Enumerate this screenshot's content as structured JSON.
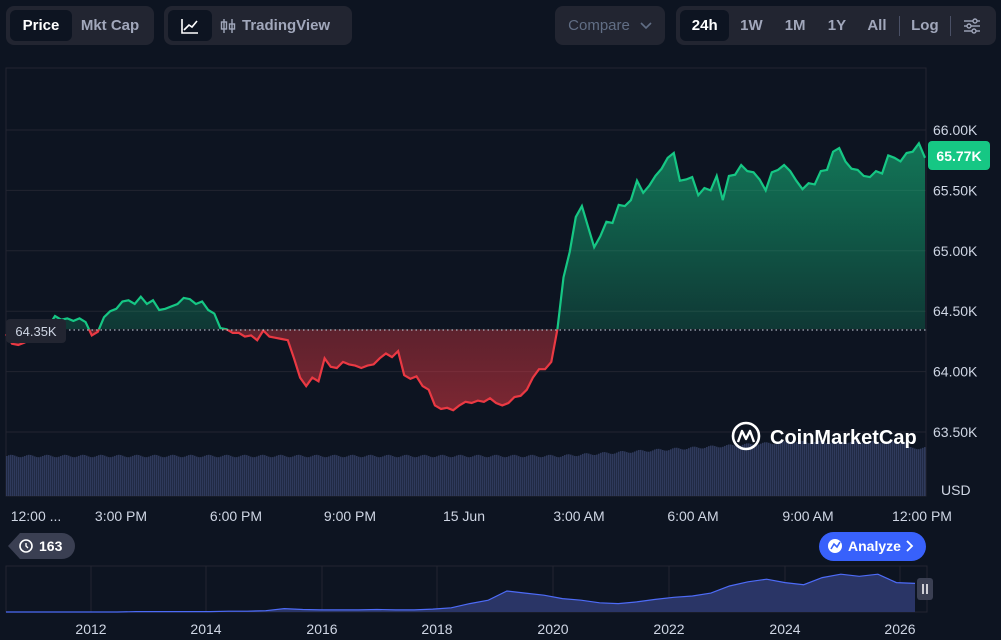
{
  "toolbar": {
    "price_tab": "Price",
    "mktcap_tab": "Mkt Cap",
    "line_icon": "line-chart-icon",
    "candle_icon": "candlestick-icon",
    "tradingview_label": "TradingView",
    "compare_label": "Compare",
    "compare_icon": "chevron-down-icon",
    "ranges": [
      "24h",
      "1W",
      "1M",
      "1Y",
      "All"
    ],
    "active_range": "24h",
    "log_label": "Log",
    "settings_icon": "sliders-icon"
  },
  "main_chart": {
    "y_ticks": [
      "66.00K",
      "65.50K",
      "65.00K",
      "64.50K",
      "64.00K",
      "63.50K"
    ],
    "currency_label": "USD",
    "current_price_label": "65.77K",
    "open_price_label": "64.35K",
    "x_ticks": [
      "12:00 ...",
      "3:00 PM",
      "6:00 PM",
      "9:00 PM",
      "15 Jun",
      "3:00 AM",
      "6:00 AM",
      "9:00 AM",
      "12:00 PM"
    ],
    "watermark": "CoinMarketCap",
    "colors": {
      "up": "#16c784",
      "down": "#ea3943",
      "volume": "#2f3a5c"
    }
  },
  "history_counter": {
    "icon": "history-icon",
    "value": "163"
  },
  "analyze_button": {
    "label": "Analyze",
    "icon": "analyze-icon",
    "chevron": "chevron-right-icon",
    "color": "#3861fb"
  },
  "overview": {
    "years": [
      "2012",
      "2014",
      "2016",
      "2018",
      "2020",
      "2022",
      "2024",
      "2026"
    ],
    "handle_icon": "pause-handle-icon"
  },
  "chart_data": {
    "type": "area",
    "unit": "USD",
    "baseline": 64350,
    "last": 65770,
    "ylim": [
      63300,
      66300
    ],
    "y_ticks": [
      66000,
      65500,
      65000,
      64500,
      64000,
      63500
    ],
    "x_ticks": [
      "12:00 ...",
      "3:00 PM",
      "6:00 PM",
      "9:00 PM",
      "15 Jun",
      "3:00 AM",
      "6:00 AM",
      "9:00 AM",
      "12:00 PM"
    ],
    "series": [
      {
        "values": [
          64310,
          64230,
          64220,
          64240,
          64270,
          64300,
          64330,
          64380,
          64460,
          64430,
          64440,
          64420,
          64440,
          64410,
          64300,
          64330,
          64450,
          64500,
          64520,
          64580,
          64590,
          64560,
          64620,
          64560,
          64590,
          64510,
          64520,
          64540,
          64560,
          64610,
          64600,
          64560,
          64580,
          64510,
          64480,
          64360,
          64350,
          64320,
          64320,
          64290,
          64300,
          64260,
          64340,
          64290,
          64280,
          64270,
          64260,
          64110,
          63950,
          63880,
          63950,
          63920,
          64110,
          64040,
          64030,
          64080,
          64060,
          64050,
          64030,
          64050,
          64060,
          64110,
          64150,
          64120,
          64170,
          63970,
          63940,
          63960,
          63880,
          63850,
          63720,
          63690,
          63700,
          63680,
          63720,
          63750,
          63740,
          63760,
          63750,
          63780,
          63740,
          63720,
          63740,
          63790,
          63800,
          63850,
          63950,
          64020,
          64020,
          64080,
          64350,
          64780,
          64990,
          65280,
          65370,
          65200,
          65030,
          65120,
          65240,
          65230,
          65380,
          65370,
          65420,
          65580,
          65480,
          65540,
          65620,
          65680,
          65770,
          65810,
          65580,
          65590,
          65610,
          65460,
          65520,
          65500,
          65620,
          65420,
          65620,
          65630,
          65710,
          65660,
          65650,
          65590,
          65500,
          65650,
          65670,
          65710,
          65660,
          65580,
          65510,
          65560,
          65550,
          65660,
          65670,
          65820,
          65850,
          65740,
          65680,
          65670,
          65620,
          65610,
          65660,
          65640,
          65790,
          65770,
          65740,
          65810,
          65820,
          65890,
          65770
        ]
      }
    ],
    "overview_series": [
      {
        "values": [
          0,
          0,
          0,
          0,
          0,
          0,
          0,
          0.01,
          0.01,
          0.01,
          0.01,
          0.01,
          0.02,
          0.02,
          0.03,
          0.08,
          0.06,
          0.05,
          0.05,
          0.05,
          0.06,
          0.05,
          0.05,
          0.07,
          0.1,
          0.2,
          0.28,
          0.5,
          0.45,
          0.4,
          0.32,
          0.28,
          0.22,
          0.2,
          0.24,
          0.3,
          0.35,
          0.38,
          0.45,
          0.62,
          0.72,
          0.78,
          0.7,
          0.65,
          0.82,
          0.9,
          0.85,
          0.9,
          0.7,
          0.68
        ]
      }
    ],
    "overview_range": [
      "2010",
      "2026"
    ]
  }
}
